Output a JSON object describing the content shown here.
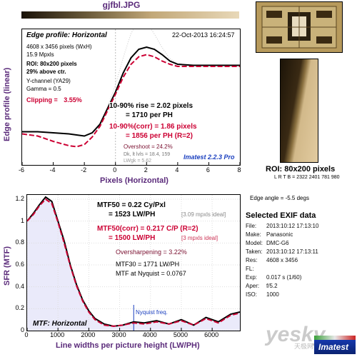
{
  "file_title": "gjfbl.JPG",
  "colors": {
    "black_curve": "#000000",
    "red_curve": "#cc0033",
    "purple_text": "#5a2a7a",
    "blue_text": "#1a3fbf",
    "mtf_fill": "#dcdcf6",
    "gray_curve": "#c8c8c8"
  },
  "edge_panel": {
    "heading": "Edge profile: Horizontal",
    "date": "22-Oct-2013 16:24:57",
    "size_line": "4608 x 3456 pixels (WxH)",
    "mpx_line": "15.9 Mpxls",
    "roi_line": "ROI: 80x200 pixels",
    "above_line": "29% above ctr.",
    "channel_line": "Y-channel (YA29)",
    "gamma_line": "Gamma = 0.5",
    "clipping_label": "Clipping =",
    "clipping_value": "3.55%",
    "rise_line1": "10-90% rise = 2.02 pixels",
    "rise_line2": "= 1710 per PH",
    "corr_line1": "10-90%(corr) = 1.86 pixels",
    "corr_line2": "= 1856 per PH  (R=2)",
    "overshoot": "Overshoot = 24.2%",
    "dk_line": "Dk, lt lvls = 18.4, 159",
    "lwk_line": "LWgk = 5.62",
    "version": "Imatest 2.2.3 Pro",
    "ylabel": "Edge profile (linear)",
    "xlabel": "Pixels (Horizontal)"
  },
  "mtf_panel": {
    "heading": "MTF: Horizontal",
    "mtf50_line": "MTF50 = 0.22 Cy/Pxl",
    "mtf50_lw": "= 1523 LW/PH",
    "mtf50_ideal": "[3.09 mpxls ideal]",
    "mtf50c_line": "MTF50(corr) = 0.217 C/P  (R=2)",
    "mtf50c_lw": "= 1500 LW/PH",
    "mtf50c_ideal": "[3 mpxls ideal]",
    "oversharp": "Oversharpening = 3.22%",
    "mtf30": "MTF30 = 1771 LW/PH",
    "nyq_val": "MTF at Nyquist = 0.0767",
    "nyquist_label": "Nyquist freq.",
    "ylabel": "SFR (MTF)",
    "xlabel": "Line widths per picture height (LW/PH)"
  },
  "roi_caption": "ROI: 80x200 pixels",
  "lrtb": "L R T B = 2322 2401  781 980",
  "edge_angle": "Edge angle = -5.5 degs",
  "exif": {
    "title": "Selected EXIF data",
    "rows": [
      {
        "k": "File:",
        "v": "2013:10:12 17:13:10"
      },
      {
        "k": "Make:",
        "v": "Panasonic"
      },
      {
        "k": "Model:",
        "v": "DMC-G6"
      },
      {
        "k": "Taken:",
        "v": "2013:10:12 17:13:11"
      },
      {
        "k": "Res:",
        "v": "4608 x 3456"
      },
      {
        "k": "FL:",
        "v": ""
      },
      {
        "k": "Exp:",
        "v": "0.017 s  (1/60)"
      },
      {
        "k": "Aper:",
        "v": "f/5.2"
      },
      {
        "k": "ISO:",
        "v": "1000"
      }
    ]
  },
  "watermark": "yesky",
  "watermark_sub": "天极网",
  "logo_text": "Imatest",
  "chart_data": [
    {
      "type": "line",
      "title": "Edge profile: Horizontal",
      "xlabel": "Pixels (Horizontal)",
      "ylabel": "Edge profile (linear)",
      "xlim": [
        -6,
        8
      ],
      "xticks": [
        -6,
        -4,
        -2,
        0,
        2,
        4,
        6,
        8
      ],
      "series": [
        {
          "x": [
            -6,
            -5,
            -4,
            -3,
            -2.5,
            -2,
            -1.5,
            -1,
            -0.5,
            0,
            0.5,
            1,
            1.5,
            2,
            2.5,
            3,
            3.5,
            4,
            5,
            6,
            7,
            8
          ],
          "y": [
            0.23,
            0.23,
            0.22,
            0.21,
            0.2,
            0.19,
            0.22,
            0.3,
            0.45,
            0.6,
            0.78,
            0.92,
            1.0,
            1.02,
            1.0,
            0.95,
            0.89,
            0.86,
            0.85,
            0.85,
            0.85,
            0.85
          ]
        },
        {
          "x": [
            -6,
            -5,
            -4,
            -3,
            -2.5,
            -2,
            -1.5,
            -1,
            -0.5,
            0,
            0.5,
            1,
            1.5,
            2,
            2.5,
            3,
            3.5,
            4,
            5,
            6,
            7,
            8
          ],
          "y": [
            0.21,
            0.19,
            0.14,
            0.1,
            0.09,
            0.11,
            0.18,
            0.28,
            0.43,
            0.58,
            0.74,
            0.86,
            0.93,
            0.95,
            0.93,
            0.89,
            0.86,
            0.84,
            0.84,
            0.84,
            0.84,
            0.84
          ]
        }
      ]
    },
    {
      "type": "line",
      "title": "MTF: Horizontal",
      "xlabel": "Line widths per picture height (LW/PH)",
      "ylabel": "SFR (MTF)",
      "xlim": [
        0,
        6900
      ],
      "ylim": [
        0,
        1.2
      ],
      "xticks": [
        0,
        1000,
        2000,
        3000,
        4000,
        5000,
        6000
      ],
      "yticks": [
        0,
        0.2,
        0.4,
        0.6,
        0.8,
        1,
        1.2
      ],
      "nyquist_x": 3456,
      "series": [
        {
          "x": [
            0,
            200,
            400,
            600,
            800,
            1000,
            1200,
            1400,
            1600,
            1800,
            2000,
            2200,
            2500,
            2800,
            3100,
            3456,
            3800,
            4200,
            4600,
            5000,
            5400,
            5800,
            6200,
            6600,
            6900
          ],
          "y": [
            1.0,
            1.07,
            1.15,
            1.22,
            1.18,
            1.0,
            0.82,
            0.6,
            0.42,
            0.28,
            0.18,
            0.11,
            0.06,
            0.04,
            0.05,
            0.08,
            0.07,
            0.09,
            0.06,
            0.1,
            0.05,
            0.12,
            0.08,
            0.15,
            0.17
          ]
        },
        {
          "x": [
            0,
            200,
            400,
            600,
            800,
            1000,
            1200,
            1400,
            1600,
            1800,
            2000,
            2200,
            2500,
            2800,
            3100,
            3456,
            3800,
            4200,
            4600,
            5000,
            5400,
            5800,
            6200,
            6600,
            6900
          ],
          "y": [
            1.0,
            1.06,
            1.14,
            1.2,
            1.16,
            0.99,
            0.8,
            0.59,
            0.41,
            0.27,
            0.17,
            0.1,
            0.05,
            0.04,
            0.05,
            0.07,
            0.06,
            0.08,
            0.06,
            0.09,
            0.05,
            0.11,
            0.07,
            0.14,
            0.16
          ]
        }
      ]
    }
  ]
}
